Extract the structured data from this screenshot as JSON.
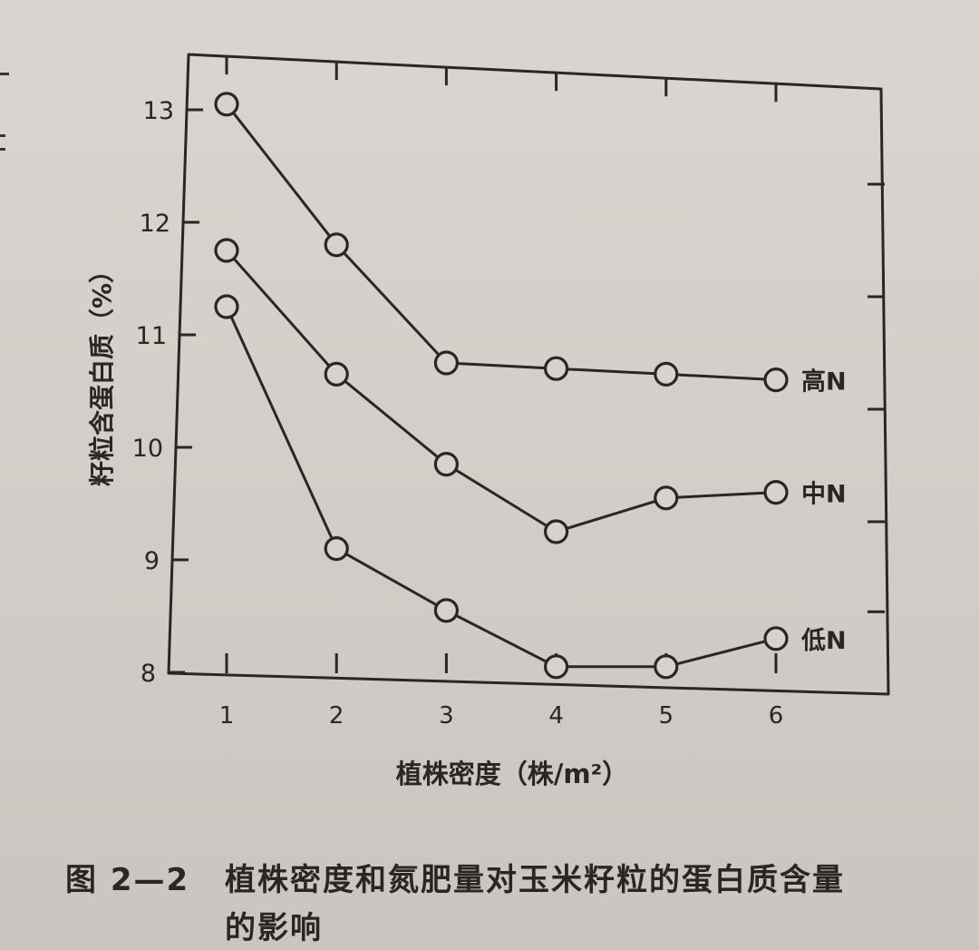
{
  "chart_data": {
    "type": "line",
    "title": "",
    "xlabel": "植株密度（株/m²）",
    "ylabel": "籽粒含蛋白质（%）",
    "x": [
      1,
      2,
      3,
      4,
      5,
      6
    ],
    "x_ticks": [
      "1",
      "2",
      "3",
      "4",
      "5",
      "6"
    ],
    "y_ticks": [
      "8",
      "9",
      "10",
      "11",
      "12",
      "13"
    ],
    "xlim": [
      0.5,
      7
    ],
    "ylim": [
      8,
      13.5
    ],
    "grid": false,
    "marker": "open-circle",
    "series": [
      {
        "name": "高N",
        "values": [
          13.05,
          11.8,
          10.75,
          10.7,
          10.65,
          10.6
        ]
      },
      {
        "name": "中N",
        "values": [
          11.75,
          10.65,
          9.85,
          9.25,
          9.55,
          9.6
        ]
      },
      {
        "name": "低N",
        "values": [
          11.25,
          9.1,
          8.55,
          8.05,
          8.05,
          8.3
        ]
      }
    ]
  },
  "caption": {
    "number": "图 2—2",
    "line1": "植株密度和氮肥量对玉米籽粒的蛋白质含量",
    "line2": "的影响"
  },
  "colors": {
    "ink": "#2a2624",
    "paper": "#d3cfca"
  }
}
